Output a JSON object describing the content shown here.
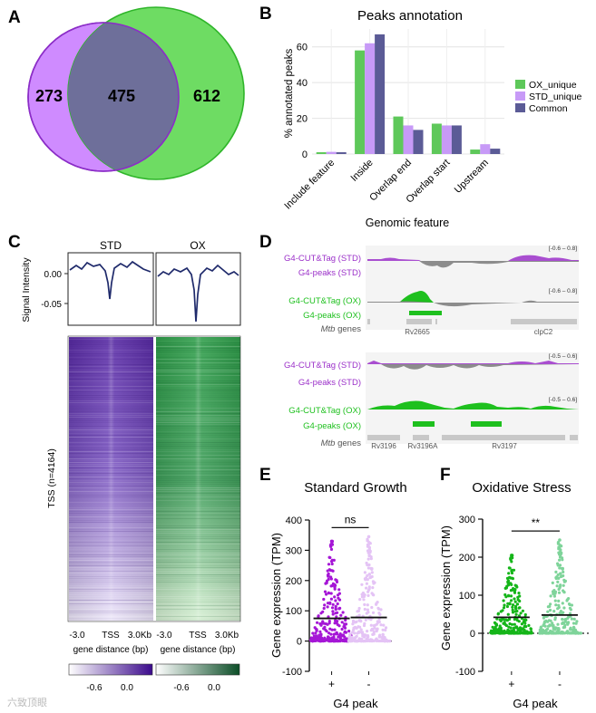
{
  "panel_letters": {
    "a": "A",
    "b": "B",
    "c": "C",
    "d": "D",
    "e": "E",
    "f": "F"
  },
  "venn": {
    "left_only": "273",
    "overlap": "475",
    "right_only": "612",
    "left_color": "#c77dff",
    "right_color": "#5fd35a"
  },
  "chart_data": [
    {
      "type": "bar",
      "title": "Peaks annotation",
      "xlabel": "Genomic feature",
      "ylabel": "% annotated peaks",
      "ylim": [
        0,
        70
      ],
      "yticks": [
        "0",
        "20",
        "40",
        "60"
      ],
      "categories": [
        "Include feature",
        "Inside",
        "Overlap end",
        "Overlap start",
        "Upstream"
      ],
      "series": [
        {
          "name": "OX_unique",
          "color": "#5ec85a",
          "values": [
            1,
            58,
            21,
            17,
            2.5
          ]
        },
        {
          "name": "STD_unique",
          "color": "#c79af7",
          "values": [
            1.2,
            62,
            16,
            16,
            5.5
          ]
        },
        {
          "name": "Common",
          "color": "#5b5b96",
          "values": [
            1,
            67,
            13.5,
            16,
            3
          ]
        }
      ]
    },
    {
      "type": "line",
      "title": "STD",
      "ylabel": "Signal Intensity",
      "yticks": [
        "0.00",
        "-0.05"
      ],
      "note": "Average signal profile around TSS, with a sharp dip at the TSS"
    },
    {
      "type": "line",
      "title": "OX",
      "note": "Average signal profile around TSS, with a sharp dip at the TSS"
    },
    {
      "type": "heatmap",
      "ylabel": "TSS (n=4164)",
      "x_ticks": [
        "-3.0",
        "TSS",
        "3.0Kb"
      ],
      "xlabel": "gene distance (bp)",
      "colorbar_ticks": [
        "-0.6",
        "0.0"
      ]
    },
    {
      "type": "scatter",
      "title": "Standard Growth",
      "ylabel": "Gene expression (TPM)",
      "xlabel": "G4 peak",
      "categories": [
        "+",
        "-"
      ],
      "yticks": [
        "-100",
        "0",
        "100",
        "200",
        "300",
        "400"
      ],
      "ylim": [
        -100,
        400
      ],
      "medians": [
        75,
        78
      ],
      "maxima": [
        330,
        345
      ],
      "significance": "ns"
    },
    {
      "type": "scatter",
      "title": "Oxidative Stress",
      "ylabel": "Gene expression (TPM)",
      "xlabel": "G4 peak",
      "categories": [
        "+",
        "-"
      ],
      "yticks": [
        "-100",
        "0",
        "100",
        "200",
        "300"
      ],
      "ylim": [
        -100,
        300
      ],
      "medians": [
        42,
        48
      ],
      "maxima": [
        205,
        245
      ],
      "significance": "**"
    }
  ],
  "tracks": {
    "block1": {
      "labels": [
        "G4-CUT&Tag (STD)",
        "G4-peaks (STD)",
        "G4-CUT&Tag (OX)",
        "G4-peaks (OX)"
      ],
      "genes_label": "Mtb genes",
      "genes_label_italic": "Mtb",
      "genes_label_rest": " genes",
      "ranges": [
        "[-0.6 – 0.8]",
        "[-0.6 – 0.8]"
      ],
      "gene_names": [
        "Rv2665",
        "clpC2"
      ]
    },
    "block2": {
      "labels": [
        "G4-CUT&Tag (STD)",
        "G4-peaks (STD)",
        "G4-CUT&Tag (OX)",
        "G4-peaks (OX)"
      ],
      "ranges": [
        "[-0.5 – 0.6]",
        "[-0.5 – 0.6]"
      ],
      "gene_names": [
        "Rv3196",
        "Rv3196A",
        "Rv3197"
      ]
    }
  },
  "watermark": "六致顶眼",
  "colors": {
    "purple": "#9b30c9",
    "green": "#1ec01e",
    "navy": "#1f2a6b"
  }
}
